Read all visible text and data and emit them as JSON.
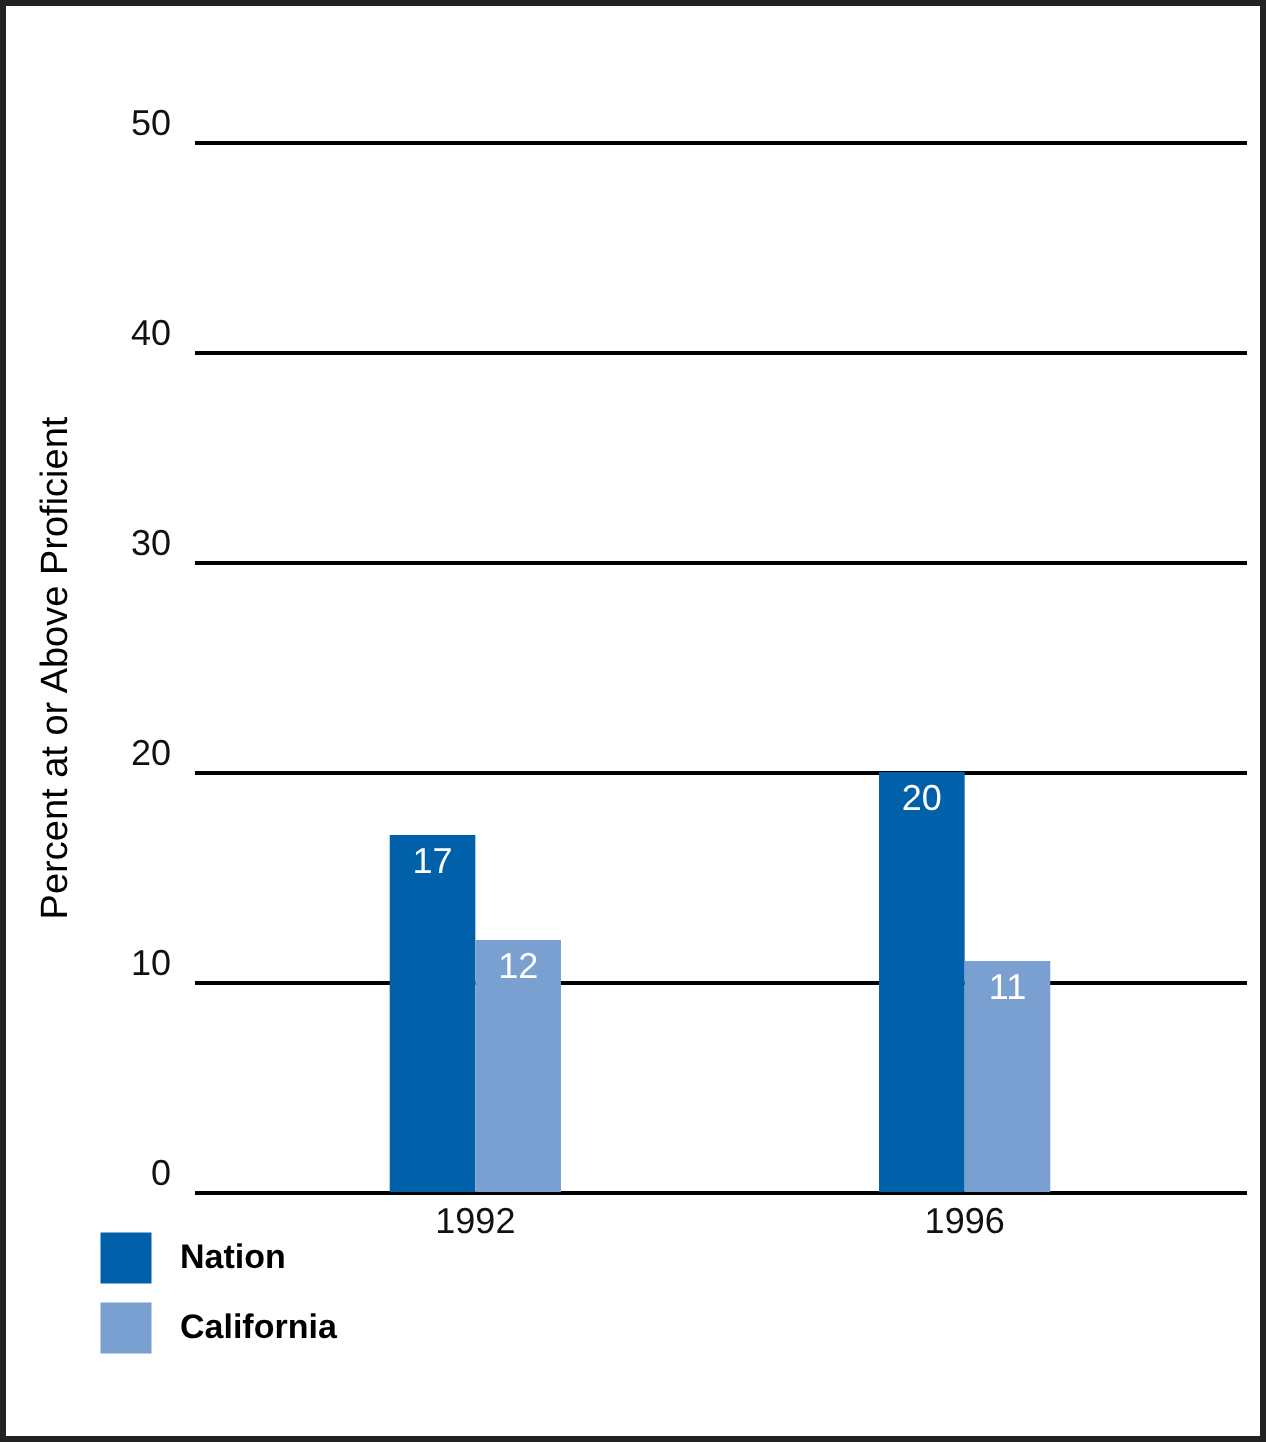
{
  "chart_data": {
    "type": "bar",
    "ylabel": "Percent at or Above Proficient",
    "categories": [
      "1992",
      "1996"
    ],
    "series": [
      {
        "name": "Nation",
        "color": "#0061aa",
        "values": [
          17,
          20
        ]
      },
      {
        "name": "California",
        "color": "#7a9fd1",
        "values": [
          12,
          11
        ]
      }
    ],
    "ylim": [
      0,
      50
    ],
    "yticks": [
      0,
      10,
      20,
      30,
      40,
      50
    ],
    "grid": "y",
    "legend": "bottom left",
    "data_labels": true
  }
}
